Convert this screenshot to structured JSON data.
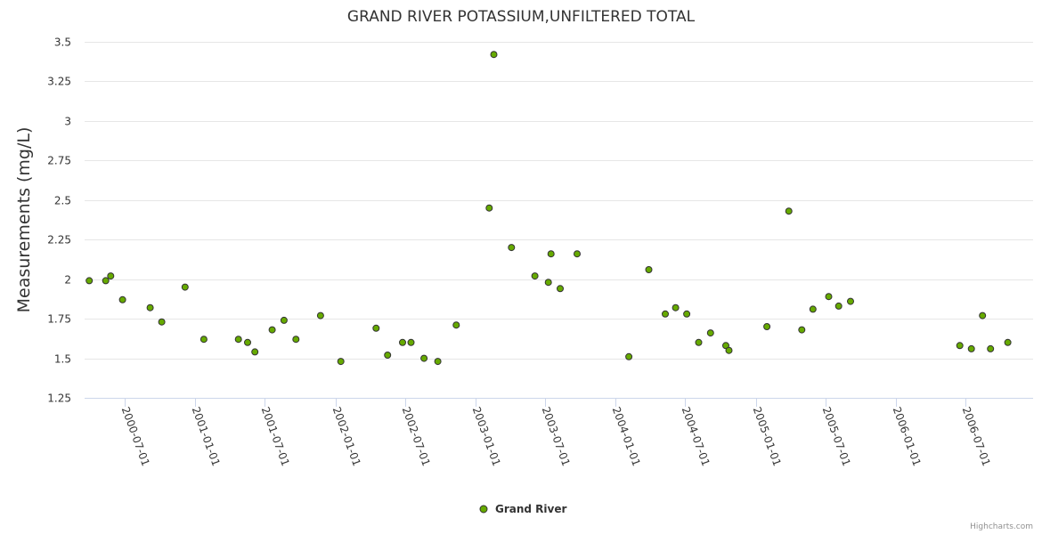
{
  "chart_data": {
    "type": "scatter",
    "title": "GRAND RIVER POTASSIUM,UNFILTERED TOTAL",
    "xlabel": "",
    "ylabel": "Measurements (mg/L)",
    "ylim": [
      1.25,
      3.5
    ],
    "yticks": [
      "1.25",
      "1.5",
      "1.75",
      "2",
      "2.25",
      "2.5",
      "2.75",
      "3",
      "3.25",
      "3.5"
    ],
    "xticks": [
      "2000-07-01",
      "2001-01-01",
      "2001-07-01",
      "2002-01-01",
      "2002-07-01",
      "2003-01-01",
      "2003-07-01",
      "2004-01-01",
      "2004-07-01",
      "2005-01-01",
      "2005-07-01",
      "2006-01-01",
      "2006-07-01"
    ],
    "xlim": [
      "2000-03-18",
      "2006-12-25"
    ],
    "grid": "horizontal",
    "legend_position": "bottom-center",
    "series": [
      {
        "name": "Grand River",
        "color": "#66aa00",
        "border_color": "#333333",
        "points": [
          [
            "2000-03-30",
            1.99
          ],
          [
            "2000-05-12",
            1.99
          ],
          [
            "2000-05-25",
            2.02
          ],
          [
            "2000-06-25",
            1.87
          ],
          [
            "2000-09-05",
            1.82
          ],
          [
            "2000-10-05",
            1.73
          ],
          [
            "2000-12-05",
            1.95
          ],
          [
            "2001-01-23",
            1.62
          ],
          [
            "2001-04-23",
            1.62
          ],
          [
            "2001-05-17",
            1.6
          ],
          [
            "2001-06-05",
            1.54
          ],
          [
            "2001-07-20",
            1.68
          ],
          [
            "2001-08-20",
            1.74
          ],
          [
            "2001-09-20",
            1.62
          ],
          [
            "2001-11-23",
            1.77
          ],
          [
            "2002-01-15",
            1.48
          ],
          [
            "2002-04-17",
            1.69
          ],
          [
            "2002-05-17",
            1.52
          ],
          [
            "2002-06-25",
            1.6
          ],
          [
            "2002-07-17",
            1.6
          ],
          [
            "2002-08-20",
            1.5
          ],
          [
            "2002-09-25",
            1.48
          ],
          [
            "2002-11-12",
            1.71
          ],
          [
            "2003-02-06",
            2.45
          ],
          [
            "2003-02-18",
            3.42
          ],
          [
            "2003-04-05",
            2.2
          ],
          [
            "2003-06-05",
            2.02
          ],
          [
            "2003-07-10",
            1.98
          ],
          [
            "2003-07-17",
            2.16
          ],
          [
            "2003-08-10",
            1.94
          ],
          [
            "2003-09-23",
            2.16
          ],
          [
            "2004-02-05",
            1.51
          ],
          [
            "2004-03-28",
            2.06
          ],
          [
            "2004-05-10",
            1.78
          ],
          [
            "2004-06-06",
            1.82
          ],
          [
            "2004-07-05",
            1.78
          ],
          [
            "2004-08-05",
            1.6
          ],
          [
            "2004-09-05",
            1.66
          ],
          [
            "2004-10-15",
            1.58
          ],
          [
            "2004-10-23",
            1.55
          ],
          [
            "2005-01-30",
            1.7
          ],
          [
            "2005-03-28",
            2.43
          ],
          [
            "2005-05-01",
            1.68
          ],
          [
            "2005-05-30",
            1.81
          ],
          [
            "2005-07-10",
            1.89
          ],
          [
            "2005-08-05",
            1.83
          ],
          [
            "2005-09-05",
            1.86
          ],
          [
            "2006-06-17",
            1.58
          ],
          [
            "2006-07-17",
            1.56
          ],
          [
            "2006-08-15",
            1.77
          ],
          [
            "2006-09-05",
            1.56
          ],
          [
            "2006-10-20",
            1.6
          ]
        ]
      }
    ]
  },
  "credits": "Highcharts.com"
}
